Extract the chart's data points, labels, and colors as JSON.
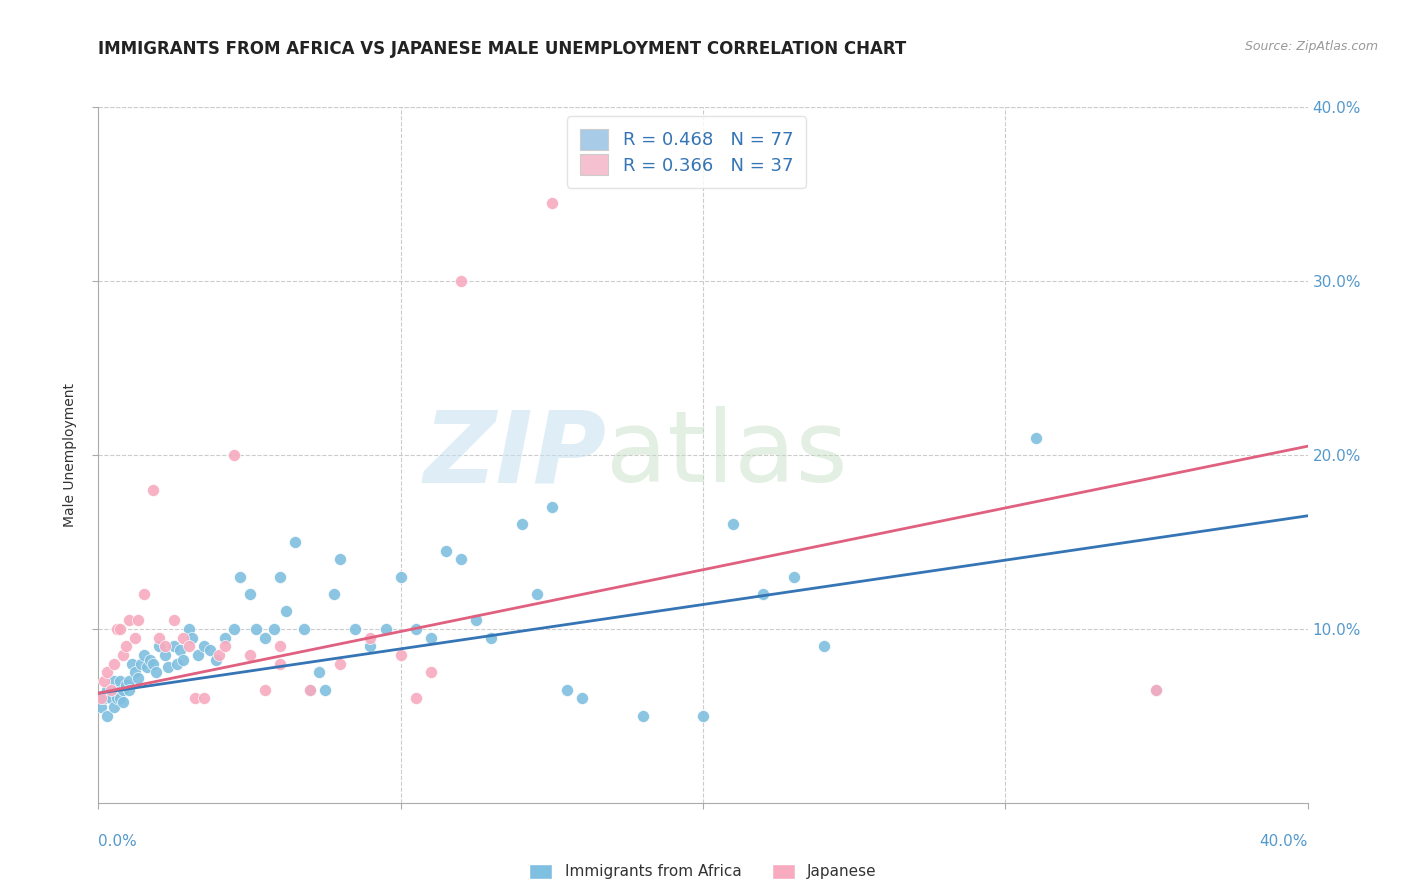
{
  "title": "IMMIGRANTS FROM AFRICA VS JAPANESE MALE UNEMPLOYMENT CORRELATION CHART",
  "source": "Source: ZipAtlas.com",
  "ylabel": "Male Unemployment",
  "xlim": [
    0.0,
    0.4
  ],
  "ylim": [
    0.0,
    0.4
  ],
  "right_ytick_labels": [
    "10.0%",
    "20.0%",
    "30.0%",
    "40.0%"
  ],
  "right_ytick_vals": [
    0.1,
    0.2,
    0.3,
    0.4
  ],
  "grid_ytick_vals": [
    0.1,
    0.2,
    0.3,
    0.4
  ],
  "grid_xtick_vals": [
    0.1,
    0.2,
    0.3
  ],
  "legend_label_blue_stat": "R = 0.468   N = 77",
  "legend_label_pink_stat": "R = 0.366   N = 37",
  "legend_label_blue": "Immigrants from Africa",
  "legend_label_pink": "Japanese",
  "blue_color": "#7fbfdf",
  "pink_color": "#f8aabf",
  "blue_line_color": "#3575b5",
  "pink_line_color": "#e06080",
  "blue_legend_color": "#a8cce8",
  "pink_legend_color": "#f5c0d0",
  "title_fontsize": 12,
  "axis_label_fontsize": 10,
  "tick_fontsize": 11,
  "legend_fontsize": 13,
  "blue_scatter": [
    [
      0.001,
      0.055
    ],
    [
      0.002,
      0.06
    ],
    [
      0.003,
      0.05
    ],
    [
      0.003,
      0.065
    ],
    [
      0.004,
      0.06
    ],
    [
      0.005,
      0.07
    ],
    [
      0.005,
      0.055
    ],
    [
      0.006,
      0.06
    ],
    [
      0.006,
      0.065
    ],
    [
      0.007,
      0.06
    ],
    [
      0.007,
      0.07
    ],
    [
      0.008,
      0.065
    ],
    [
      0.008,
      0.058
    ],
    [
      0.009,
      0.068
    ],
    [
      0.01,
      0.07
    ],
    [
      0.01,
      0.065
    ],
    [
      0.011,
      0.08
    ],
    [
      0.012,
      0.075
    ],
    [
      0.013,
      0.072
    ],
    [
      0.014,
      0.08
    ],
    [
      0.015,
      0.085
    ],
    [
      0.016,
      0.078
    ],
    [
      0.017,
      0.082
    ],
    [
      0.018,
      0.08
    ],
    [
      0.019,
      0.075
    ],
    [
      0.02,
      0.09
    ],
    [
      0.022,
      0.085
    ],
    [
      0.023,
      0.078
    ],
    [
      0.025,
      0.09
    ],
    [
      0.026,
      0.08
    ],
    [
      0.027,
      0.088
    ],
    [
      0.028,
      0.082
    ],
    [
      0.03,
      0.1
    ],
    [
      0.031,
      0.095
    ],
    [
      0.033,
      0.085
    ],
    [
      0.035,
      0.09
    ],
    [
      0.037,
      0.088
    ],
    [
      0.039,
      0.082
    ],
    [
      0.042,
      0.095
    ],
    [
      0.045,
      0.1
    ],
    [
      0.047,
      0.13
    ],
    [
      0.05,
      0.12
    ],
    [
      0.052,
      0.1
    ],
    [
      0.055,
      0.095
    ],
    [
      0.058,
      0.1
    ],
    [
      0.06,
      0.13
    ],
    [
      0.062,
      0.11
    ],
    [
      0.065,
      0.15
    ],
    [
      0.068,
      0.1
    ],
    [
      0.07,
      0.065
    ],
    [
      0.073,
      0.075
    ],
    [
      0.075,
      0.065
    ],
    [
      0.078,
      0.12
    ],
    [
      0.08,
      0.14
    ],
    [
      0.085,
      0.1
    ],
    [
      0.09,
      0.09
    ],
    [
      0.095,
      0.1
    ],
    [
      0.1,
      0.13
    ],
    [
      0.105,
      0.1
    ],
    [
      0.11,
      0.095
    ],
    [
      0.115,
      0.145
    ],
    [
      0.12,
      0.14
    ],
    [
      0.125,
      0.105
    ],
    [
      0.13,
      0.095
    ],
    [
      0.14,
      0.16
    ],
    [
      0.145,
      0.12
    ],
    [
      0.15,
      0.17
    ],
    [
      0.155,
      0.065
    ],
    [
      0.16,
      0.06
    ],
    [
      0.18,
      0.05
    ],
    [
      0.2,
      0.05
    ],
    [
      0.21,
      0.16
    ],
    [
      0.22,
      0.12
    ],
    [
      0.23,
      0.13
    ],
    [
      0.24,
      0.09
    ],
    [
      0.31,
      0.21
    ],
    [
      0.35,
      0.065
    ]
  ],
  "pink_scatter": [
    [
      0.001,
      0.06
    ],
    [
      0.002,
      0.07
    ],
    [
      0.003,
      0.075
    ],
    [
      0.004,
      0.065
    ],
    [
      0.005,
      0.08
    ],
    [
      0.006,
      0.1
    ],
    [
      0.007,
      0.1
    ],
    [
      0.008,
      0.085
    ],
    [
      0.009,
      0.09
    ],
    [
      0.01,
      0.105
    ],
    [
      0.012,
      0.095
    ],
    [
      0.013,
      0.105
    ],
    [
      0.015,
      0.12
    ],
    [
      0.018,
      0.18
    ],
    [
      0.02,
      0.095
    ],
    [
      0.022,
      0.09
    ],
    [
      0.025,
      0.105
    ],
    [
      0.028,
      0.095
    ],
    [
      0.03,
      0.09
    ],
    [
      0.032,
      0.06
    ],
    [
      0.035,
      0.06
    ],
    [
      0.04,
      0.085
    ],
    [
      0.042,
      0.09
    ],
    [
      0.045,
      0.2
    ],
    [
      0.05,
      0.085
    ],
    [
      0.055,
      0.065
    ],
    [
      0.06,
      0.09
    ],
    [
      0.06,
      0.08
    ],
    [
      0.07,
      0.065
    ],
    [
      0.08,
      0.08
    ],
    [
      0.09,
      0.095
    ],
    [
      0.1,
      0.085
    ],
    [
      0.105,
      0.06
    ],
    [
      0.11,
      0.075
    ],
    [
      0.12,
      0.3
    ],
    [
      0.15,
      0.345
    ],
    [
      0.35,
      0.065
    ]
  ],
  "blue_trendline": [
    [
      0.0,
      0.063
    ],
    [
      0.4,
      0.165
    ]
  ],
  "pink_trendline": [
    [
      0.0,
      0.063
    ],
    [
      0.4,
      0.205
    ]
  ]
}
